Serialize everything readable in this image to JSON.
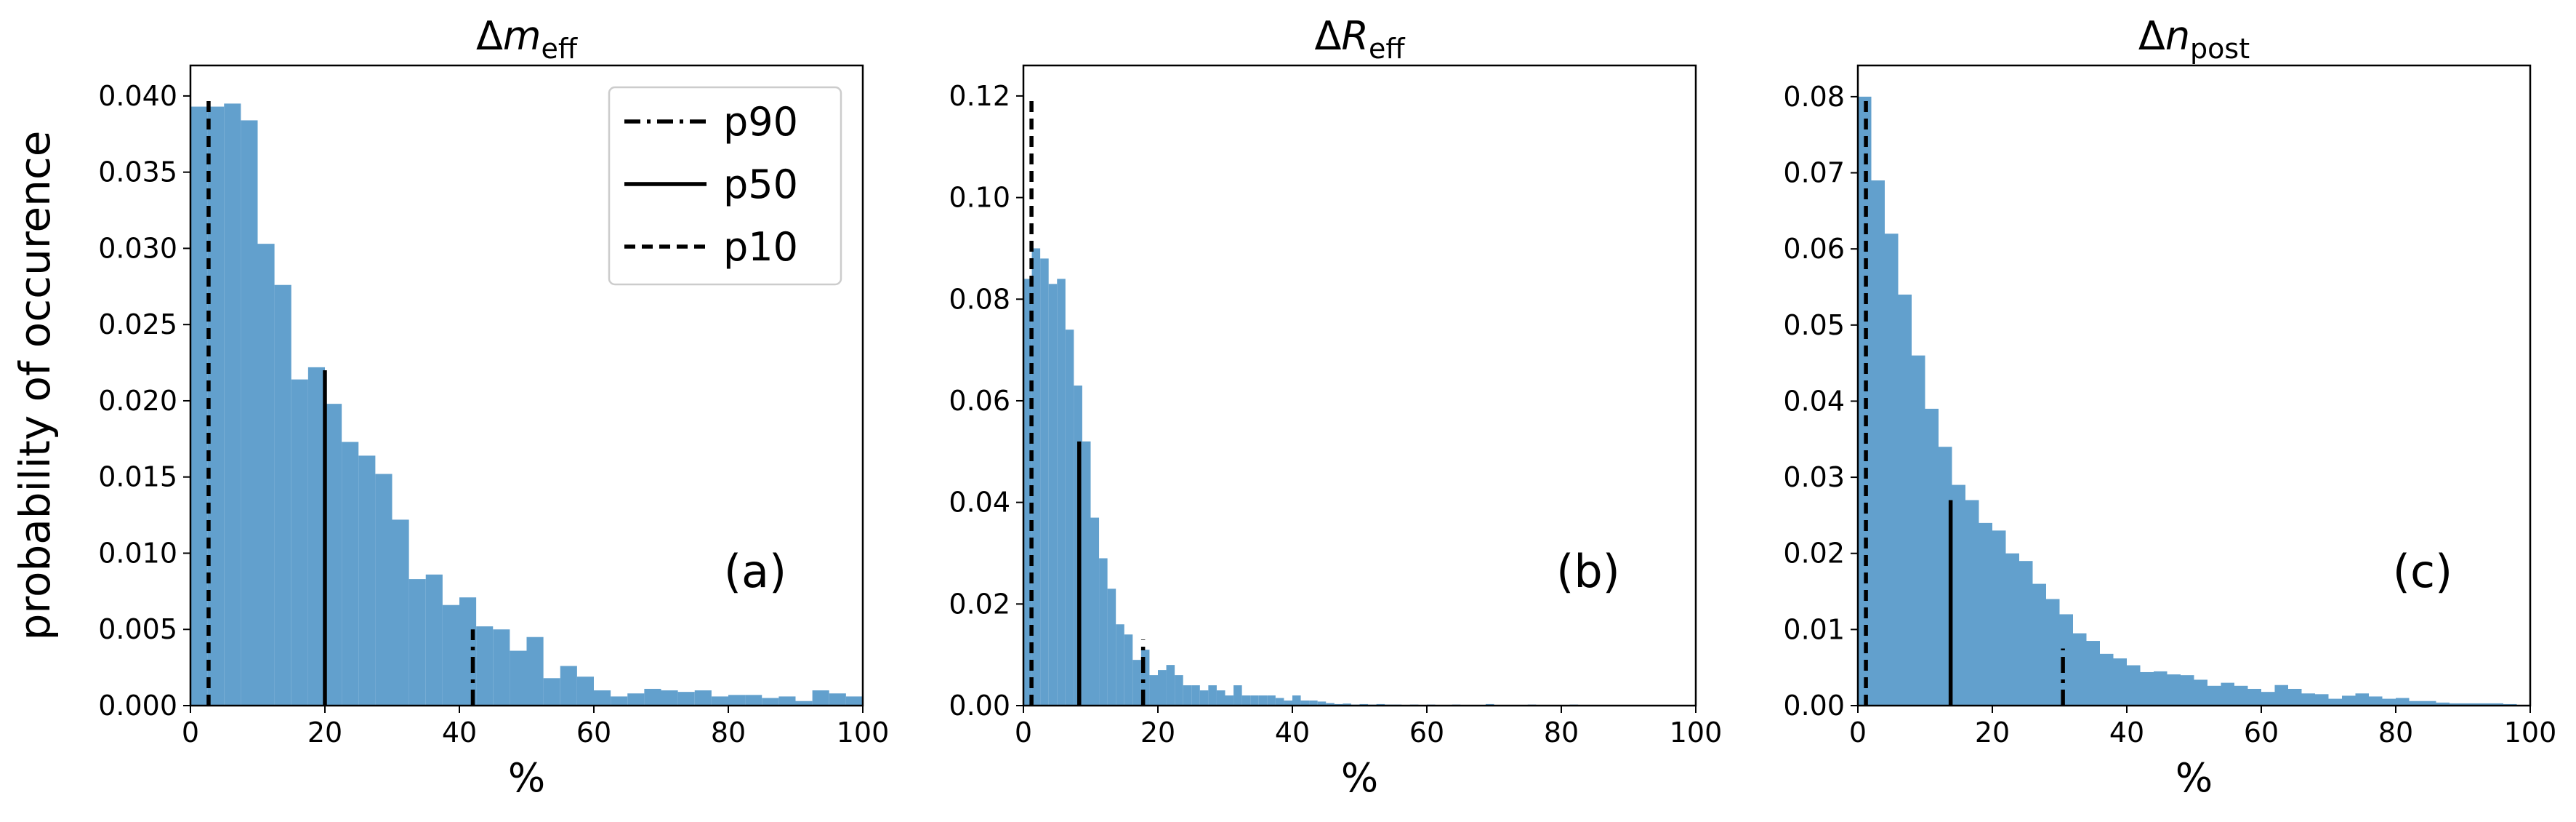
{
  "chart_data": [
    {
      "type": "histogram",
      "title": [
        "Δ",
        "m",
        "eff"
      ],
      "xlabel": "%",
      "ylabel": "probability of occurence",
      "annotation": "(a)",
      "color": "#62a0cd",
      "legend": "upper right",
      "bins": [
        0,
        2.5,
        5,
        7.5,
        10,
        12.5,
        15,
        17.5,
        20,
        22.5,
        25,
        27.5,
        30,
        32.5,
        35,
        37.5,
        40,
        42.5,
        45,
        47.5,
        50,
        52.5,
        55,
        57.5,
        60,
        62.5,
        65,
        67.5,
        70,
        72.5,
        75,
        77.5,
        80,
        82.5,
        85,
        87.5,
        90,
        92.5,
        95,
        97.5,
        100
      ],
      "values": [
        0.0393,
        0.0393,
        0.0395,
        0.0384,
        0.0303,
        0.0276,
        0.0214,
        0.0222,
        0.0198,
        0.0173,
        0.0164,
        0.0152,
        0.0122,
        0.0083,
        0.0086,
        0.0066,
        0.0071,
        0.0052,
        0.005,
        0.0036,
        0.0045,
        0.0018,
        0.0026,
        0.0019,
        0.001,
        0.0006,
        0.0008,
        0.0011,
        0.001,
        0.0009,
        0.001,
        0.0006,
        0.0007,
        0.0007,
        0.0005,
        0.0006,
        0.0003,
        0.001,
        0.0008,
        0.0006
      ],
      "lines": [
        {
          "name": "p90",
          "style": "dashdot",
          "x": 42,
          "y": 0.005
        },
        {
          "name": "p50",
          "style": "solid",
          "x": 20,
          "y": 0.022
        },
        {
          "name": "p10",
          "style": "dashed",
          "x": 2.7,
          "y": 0.04
        }
      ],
      "xlim": [
        0,
        100
      ],
      "xticks": [
        0,
        20,
        40,
        60,
        80,
        100
      ],
      "ylim": [
        0,
        0.042
      ],
      "yticks": [
        {
          "value": 0,
          "label": "0.000"
        },
        {
          "value": 0.005,
          "label": "0.005"
        },
        {
          "value": 0.01,
          "label": "0.010"
        },
        {
          "value": 0.015,
          "label": "0.015"
        },
        {
          "value": 0.02,
          "label": "0.020"
        },
        {
          "value": 0.025,
          "label": "0.025"
        },
        {
          "value": 0.03,
          "label": "0.030"
        },
        {
          "value": 0.035,
          "label": "0.035"
        },
        {
          "value": 0.04,
          "label": "0.040"
        }
      ]
    },
    {
      "type": "histogram",
      "title": [
        "Δ",
        "R",
        "eff"
      ],
      "xlabel": "%",
      "annotation": "(b)",
      "color": "#62a0cd",
      "bins": [
        0,
        1.25,
        2.5,
        3.75,
        5,
        6.25,
        7.5,
        8.75,
        10,
        11.25,
        12.5,
        13.75,
        15,
        16.25,
        17.5,
        18.75,
        20,
        21.25,
        22.5,
        23.75,
        25,
        26.25,
        27.5,
        28.75,
        30,
        31.25,
        32.5,
        33.75,
        35,
        36.25,
        37.5,
        38.75,
        40,
        41.25,
        42.5,
        43.75,
        45,
        46.25,
        47.5,
        48.75,
        50,
        51.25,
        52.5,
        53.75,
        55,
        56.25,
        57.5,
        58.75,
        60,
        61.25,
        62.5,
        63.75,
        65,
        66.25,
        67.5,
        68.75,
        70,
        71.25,
        72.5,
        73.75,
        75,
        76.25,
        77.5,
        78.75,
        80,
        81.25,
        82.5,
        83.75,
        85,
        86.25,
        87.5,
        88.75,
        90,
        91.25,
        92.5,
        93.75,
        95,
        96.25,
        97.5,
        98.75,
        100
      ],
      "values": [
        0.084,
        0.09,
        0.088,
        0.083,
        0.084,
        0.074,
        0.063,
        0.052,
        0.037,
        0.029,
        0.023,
        0.016,
        0.014,
        0.009,
        0.011,
        0.006,
        0.007,
        0.008,
        0.006,
        0.004,
        0.004,
        0.003,
        0.004,
        0.003,
        0.002,
        0.004,
        0.002,
        0.002,
        0.002,
        0.002,
        0.0015,
        0.001,
        0.002,
        0.001,
        0.001,
        0.0008,
        0.0005,
        0.0003,
        0.0004,
        0.0002,
        0.0003,
        0.0002,
        0.0003,
        0.0002,
        0.0002,
        0.0001,
        0.0002,
        0.0001,
        0.0002,
        0.0001,
        0.0001,
        0.0002,
        0.0001,
        0.0001,
        0.0001,
        0.0003,
        0.0001,
        0.0001,
        0.0001,
        0.0001,
        0.0002,
        0.0001,
        0.0001,
        0.0001,
        0.0001,
        0.0002,
        0.0001,
        0.0001,
        0.0001,
        0.0001,
        0.0001,
        0.0001,
        0.0001,
        0.0001,
        0.0001,
        0.0001,
        0.0001,
        0.0001,
        0.0001,
        0.0001
      ],
      "lines": [
        {
          "style": "dashdot",
          "x": 17.8,
          "y": 0.013
        },
        {
          "style": "solid",
          "x": 8.3,
          "y": 0.052
        },
        {
          "style": "dashed",
          "x": 1.2,
          "y": 0.12
        }
      ],
      "xlim": [
        0,
        100
      ],
      "xticks": [
        0,
        20,
        40,
        60,
        80,
        100
      ],
      "ylim": [
        0,
        0.126
      ],
      "yticks": [
        {
          "value": 0,
          "label": "0.00"
        },
        {
          "value": 0.02,
          "label": "0.02"
        },
        {
          "value": 0.04,
          "label": "0.04"
        },
        {
          "value": 0.06,
          "label": "0.06"
        },
        {
          "value": 0.08,
          "label": "0.08"
        },
        {
          "value": 0.1,
          "label": "0.10"
        },
        {
          "value": 0.12,
          "label": "0.12"
        }
      ]
    },
    {
      "type": "histogram",
      "title": [
        "Δ",
        "n",
        "post"
      ],
      "xlabel": "%",
      "annotation": "(c)",
      "color": "#62a0cd",
      "bins": [
        0,
        2,
        4,
        6,
        8,
        10,
        12,
        14,
        16,
        18,
        20,
        22,
        24,
        26,
        28,
        30,
        32,
        34,
        36,
        38,
        40,
        42,
        44,
        46,
        48,
        50,
        52,
        54,
        56,
        58,
        60,
        62,
        64,
        66,
        68,
        70,
        72,
        74,
        76,
        78,
        80,
        82,
        84,
        86,
        88,
        90,
        92,
        94,
        96,
        98,
        100
      ],
      "values": [
        0.08,
        0.069,
        0.062,
        0.054,
        0.046,
        0.039,
        0.034,
        0.029,
        0.027,
        0.024,
        0.023,
        0.02,
        0.019,
        0.016,
        0.014,
        0.012,
        0.0095,
        0.0085,
        0.0068,
        0.0062,
        0.0053,
        0.0044,
        0.0045,
        0.0041,
        0.004,
        0.0034,
        0.0026,
        0.003,
        0.0026,
        0.0022,
        0.0018,
        0.0027,
        0.0022,
        0.0016,
        0.0015,
        0.0009,
        0.0013,
        0.0016,
        0.0012,
        0.0009,
        0.001,
        0.0006,
        0.0006,
        0.0004,
        0.0003,
        0.0003,
        0.0003,
        0.0003,
        0.0002,
        0.0001
      ],
      "lines": [
        {
          "style": "dashdot",
          "x": 30.5,
          "y": 0.0075
        },
        {
          "style": "solid",
          "x": 13.8,
          "y": 0.027
        },
        {
          "style": "dashed",
          "x": 1.2,
          "y": 0.08
        }
      ],
      "xlim": [
        0,
        100
      ],
      "xticks": [
        0,
        20,
        40,
        60,
        80,
        100
      ],
      "ylim": [
        0,
        0.0841
      ],
      "yticks": [
        {
          "value": 0,
          "label": "0.00"
        },
        {
          "value": 0.01,
          "label": "0.01"
        },
        {
          "value": 0.02,
          "label": "0.02"
        },
        {
          "value": 0.03,
          "label": "0.03"
        },
        {
          "value": 0.04,
          "label": "0.04"
        },
        {
          "value": 0.05,
          "label": "0.05"
        },
        {
          "value": 0.06,
          "label": "0.06"
        },
        {
          "value": 0.07,
          "label": "0.07"
        },
        {
          "value": 0.08,
          "label": "0.08"
        }
      ]
    }
  ]
}
